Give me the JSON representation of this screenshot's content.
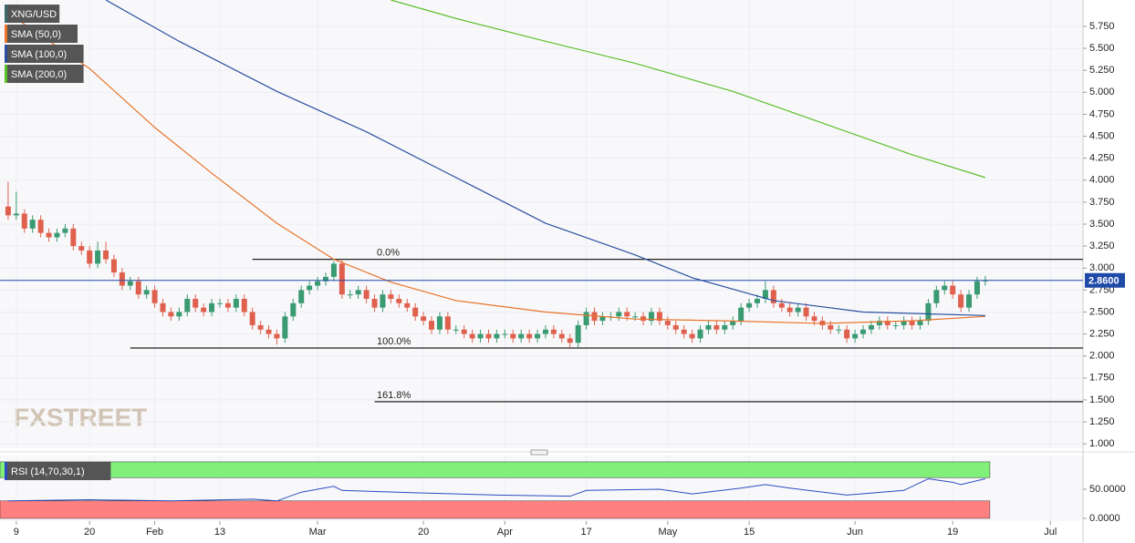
{
  "chart_data": [
    {
      "type": "candlestick",
      "name": "XNG/USD",
      "open": [
        3.7,
        3.6,
        3.62,
        3.45,
        3.55,
        3.4,
        3.35,
        3.4,
        3.45,
        3.25,
        3.2,
        3.05,
        3.2,
        3.1,
        2.95,
        2.8,
        2.85,
        2.7,
        2.75,
        2.6,
        2.5,
        2.45,
        2.5,
        2.65,
        2.55,
        2.5,
        2.6,
        2.6,
        2.55,
        2.65,
        2.5,
        2.35,
        2.3,
        2.25,
        2.2,
        2.45,
        2.6,
        2.75,
        2.8,
        2.85,
        2.9,
        3.05,
        2.7,
        2.7,
        2.75,
        2.65,
        2.55,
        2.7,
        2.65,
        2.6,
        2.55,
        2.45,
        2.4,
        2.3,
        2.45,
        2.3,
        2.3,
        2.25,
        2.2,
        2.25,
        2.2,
        2.25,
        2.25,
        2.2,
        2.25,
        2.2,
        2.25,
        2.3,
        2.25,
        2.2,
        2.15,
        2.35,
        2.5,
        2.4,
        2.45,
        2.45,
        2.5,
        2.45,
        2.45,
        2.4,
        2.5,
        2.4,
        2.35,
        2.3,
        2.25,
        2.2,
        2.3,
        2.35,
        2.3,
        2.35,
        2.4,
        2.55,
        2.6,
        2.65,
        2.75,
        2.6,
        2.55,
        2.5,
        2.55,
        2.45,
        2.4,
        2.35,
        2.3,
        2.3,
        2.2,
        2.25,
        2.3,
        2.35,
        2.4,
        2.35,
        2.35,
        2.4,
        2.35,
        2.4,
        2.6,
        2.75,
        2.8,
        2.7,
        2.55,
        2.7,
        2.85
      ],
      "high": [
        3.98,
        3.87,
        3.67,
        3.6,
        3.6,
        3.45,
        3.45,
        3.5,
        3.5,
        3.3,
        3.25,
        3.3,
        3.3,
        3.15,
        3.0,
        2.9,
        2.9,
        2.8,
        2.8,
        2.65,
        2.55,
        2.55,
        2.7,
        2.7,
        2.6,
        2.65,
        2.65,
        2.65,
        2.7,
        2.7,
        2.55,
        2.4,
        2.35,
        2.3,
        2.5,
        2.65,
        2.8,
        2.85,
        2.9,
        2.95,
        3.08,
        3.1,
        2.75,
        2.8,
        2.8,
        2.7,
        2.75,
        2.75,
        2.7,
        2.65,
        2.6,
        2.5,
        2.45,
        2.5,
        2.5,
        2.35,
        2.35,
        2.3,
        2.3,
        2.3,
        2.3,
        2.3,
        2.3,
        2.3,
        2.3,
        2.3,
        2.35,
        2.35,
        2.3,
        2.25,
        2.4,
        2.55,
        2.55,
        2.5,
        2.5,
        2.55,
        2.55,
        2.5,
        2.5,
        2.55,
        2.55,
        2.45,
        2.4,
        2.35,
        2.3,
        2.35,
        2.4,
        2.4,
        2.4,
        2.45,
        2.6,
        2.65,
        2.7,
        2.85,
        2.8,
        2.65,
        2.6,
        2.6,
        2.6,
        2.5,
        2.45,
        2.4,
        2.35,
        2.35,
        2.3,
        2.35,
        2.4,
        2.45,
        2.45,
        2.4,
        2.45,
        2.45,
        2.45,
        2.65,
        2.8,
        2.85,
        2.85,
        2.75,
        2.75,
        2.9,
        2.91
      ],
      "low": [
        3.55,
        3.55,
        3.4,
        3.4,
        3.35,
        3.3,
        3.3,
        3.35,
        3.2,
        3.15,
        3.0,
        3.0,
        3.05,
        2.9,
        2.75,
        2.75,
        2.65,
        2.65,
        2.55,
        2.45,
        2.4,
        2.4,
        2.45,
        2.5,
        2.45,
        2.45,
        2.55,
        2.5,
        2.5,
        2.45,
        2.3,
        2.25,
        2.2,
        2.13,
        2.15,
        2.4,
        2.55,
        2.7,
        2.75,
        2.8,
        2.85,
        2.65,
        2.65,
        2.65,
        2.6,
        2.5,
        2.5,
        2.6,
        2.55,
        2.5,
        2.4,
        2.35,
        2.25,
        2.25,
        2.25,
        2.25,
        2.2,
        2.15,
        2.15,
        2.15,
        2.15,
        2.2,
        2.15,
        2.15,
        2.15,
        2.15,
        2.2,
        2.2,
        2.15,
        2.1,
        2.1,
        2.3,
        2.35,
        2.35,
        2.4,
        2.4,
        2.4,
        2.4,
        2.35,
        2.35,
        2.35,
        2.3,
        2.25,
        2.2,
        2.15,
        2.15,
        2.25,
        2.25,
        2.25,
        2.3,
        2.35,
        2.5,
        2.55,
        2.6,
        2.55,
        2.5,
        2.45,
        2.45,
        2.4,
        2.35,
        2.3,
        2.25,
        2.25,
        2.15,
        2.15,
        2.2,
        2.25,
        2.3,
        2.3,
        2.3,
        2.3,
        2.3,
        2.3,
        2.35,
        2.55,
        2.7,
        2.65,
        2.5,
        2.5,
        2.65,
        2.8
      ],
      "close": [
        3.6,
        3.62,
        3.45,
        3.55,
        3.4,
        3.35,
        3.4,
        3.45,
        3.25,
        3.2,
        3.05,
        3.2,
        3.1,
        2.95,
        2.8,
        2.85,
        2.7,
        2.75,
        2.6,
        2.5,
        2.45,
        2.5,
        2.65,
        2.55,
        2.5,
        2.6,
        2.6,
        2.55,
        2.65,
        2.5,
        2.35,
        2.3,
        2.25,
        2.2,
        2.45,
        2.6,
        2.75,
        2.8,
        2.85,
        2.9,
        3.05,
        2.7,
        2.7,
        2.75,
        2.65,
        2.55,
        2.7,
        2.65,
        2.6,
        2.55,
        2.45,
        2.4,
        2.3,
        2.45,
        2.3,
        2.3,
        2.25,
        2.2,
        2.25,
        2.2,
        2.25,
        2.25,
        2.2,
        2.25,
        2.2,
        2.25,
        2.3,
        2.25,
        2.2,
        2.15,
        2.35,
        2.5,
        2.4,
        2.45,
        2.45,
        2.5,
        2.45,
        2.45,
        2.4,
        2.5,
        2.4,
        2.35,
        2.3,
        2.25,
        2.2,
        2.3,
        2.35,
        2.3,
        2.35,
        2.4,
        2.55,
        2.6,
        2.65,
        2.75,
        2.6,
        2.55,
        2.5,
        2.55,
        2.45,
        2.4,
        2.35,
        2.3,
        2.3,
        2.2,
        2.25,
        2.3,
        2.35,
        2.4,
        2.35,
        2.35,
        2.4,
        2.35,
        2.4,
        2.6,
        2.75,
        2.8,
        2.7,
        2.55,
        2.7,
        2.85,
        2.86
      ],
      "up_color": "#3a9a72",
      "down_color": "#e0604e",
      "color": "#3a6a6a",
      "xlim": [
        -1,
        132
      ],
      "xticks": [
        {
          "value": 1,
          "label": "9"
        },
        {
          "value": 10,
          "label": "20"
        },
        {
          "value": 18,
          "label": "Feb"
        },
        {
          "value": 26,
          "label": "13"
        },
        {
          "value": 38,
          "label": "Mar"
        },
        {
          "value": 51,
          "label": "20"
        },
        {
          "value": 61,
          "label": "Apr"
        },
        {
          "value": 71,
          "label": "17"
        },
        {
          "value": 81,
          "label": "May"
        },
        {
          "value": 91,
          "label": "15"
        },
        {
          "value": 104,
          "label": "Jun"
        },
        {
          "value": 116,
          "label": "19"
        },
        {
          "value": 128,
          "label": "Jul"
        }
      ],
      "ylim": [
        0.95,
        6.05
      ],
      "yticks": [
        {
          "value": 1,
          "label": "1.000"
        },
        {
          "value": 1.25,
          "label": "1.250"
        },
        {
          "value": 1.5,
          "label": "1.500"
        },
        {
          "value": 1.75,
          "label": "1.750"
        },
        {
          "value": 2,
          "label": "2.000"
        },
        {
          "value": 2.25,
          "label": "2.250"
        },
        {
          "value": 2.5,
          "label": "2.500"
        },
        {
          "value": 2.75,
          "label": "2.750"
        },
        {
          "value": 3,
          "label": "3.000"
        },
        {
          "value": 3.25,
          "label": "3.250"
        },
        {
          "value": 3.5,
          "label": "3.500"
        },
        {
          "value": 3.75,
          "label": "3.750"
        },
        {
          "value": 4,
          "label": "4.000"
        },
        {
          "value": 4.25,
          "label": "4.250"
        },
        {
          "value": 4.5,
          "label": "4.500"
        },
        {
          "value": 4.75,
          "label": "4.750"
        },
        {
          "value": 5,
          "label": "5.000"
        },
        {
          "value": 5.25,
          "label": "5.250"
        },
        {
          "value": 5.5,
          "label": "5.500"
        },
        {
          "value": 5.75,
          "label": "5.750"
        }
      ],
      "grid": true,
      "series": [
        {
          "name": "SMA (50,0)",
          "color": "#e8742a",
          "x": [
            0,
            10,
            18,
            25,
            33,
            40,
            47,
            55,
            66,
            77,
            88,
            100,
            111,
            120
          ],
          "values": [
            5.9,
            5.27,
            4.6,
            4.08,
            3.51,
            3.1,
            2.84,
            2.63,
            2.5,
            2.42,
            2.4,
            2.37,
            2.4,
            2.45
          ]
        },
        {
          "name": "SMA (100,0)",
          "color": "#2a4fa0",
          "x": [
            12,
            21,
            33,
            44,
            55,
            66,
            77,
            84,
            94,
            105,
            120
          ],
          "values": [
            6.05,
            5.58,
            5.01,
            4.55,
            4.03,
            3.51,
            3.15,
            2.89,
            2.63,
            2.5,
            2.46
          ]
        },
        {
          "name": "SMA (200,0)",
          "color": "#5bbf2a",
          "x": [
            47,
            55,
            66,
            77,
            89,
            100,
            111,
            120
          ],
          "values": [
            6.05,
            5.84,
            5.58,
            5.33,
            5.01,
            4.65,
            4.29,
            4.03
          ]
        }
      ],
      "levels": [
        {
          "label": "0.0%",
          "value": 3.1,
          "x_start": 30
        },
        {
          "label": "100.0%",
          "value": 2.09,
          "x_start": 15
        },
        {
          "label": "161.8%",
          "value": 1.48,
          "x_start": 45
        }
      ],
      "last_price": {
        "value": 2.86,
        "label": "2.8600",
        "color": "#1f4aa8"
      },
      "watermark": "FXSTREET"
    },
    {
      "type": "line",
      "label": "RSI (14,70,30,1)",
      "color": "#2b4bc0",
      "x": [
        0,
        10,
        20,
        30,
        33,
        36,
        40,
        41,
        50,
        60,
        69,
        71,
        80,
        84,
        90,
        93,
        96,
        103,
        110,
        113,
        116,
        117,
        120
      ],
      "values": [
        30,
        32,
        30,
        33,
        30,
        45,
        55,
        48,
        44,
        40,
        38,
        48,
        50,
        42,
        52,
        58,
        52,
        40,
        48,
        68,
        62,
        58,
        68
      ],
      "ylim": [
        0,
        100
      ],
      "yticks": [
        {
          "value": 50,
          "label": "50.0000"
        },
        {
          "value": 0,
          "label": "0.0000"
        }
      ],
      "bands": [
        {
          "from": 70,
          "to": 97,
          "color": "#80f07a"
        },
        {
          "from": 0,
          "to": 30,
          "color": "#ff8080"
        }
      ]
    }
  ]
}
